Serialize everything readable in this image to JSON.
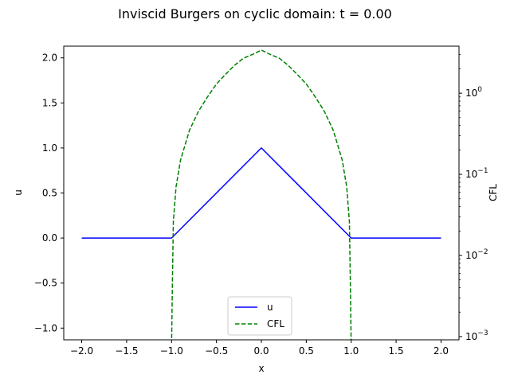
{
  "chart_data": {
    "type": "line",
    "title": "Inviscid Burgers on cyclic domain: t = 0.00",
    "xlabel": "x",
    "ylabel": "u",
    "y2label": "CFL",
    "xlim": [
      -2.2,
      2.2
    ],
    "ylim": [
      -1.13,
      2.13
    ],
    "y2lim_log10": [
      -3.04,
      0.58
    ],
    "y2scale": "log",
    "xticks": [
      -2.0,
      -1.5,
      -1.0,
      -0.5,
      0.0,
      0.5,
      1.0,
      1.5,
      2.0
    ],
    "xtick_labels": [
      "−2.0",
      "−1.5",
      "−1.0",
      "−0.5",
      "0.0",
      "0.5",
      "1.0",
      "1.5",
      "2.0"
    ],
    "yticks": [
      -1.0,
      -0.5,
      0.0,
      0.5,
      1.0,
      1.5,
      2.0
    ],
    "ytick_labels": [
      "−1.0",
      "−0.5",
      "0.0",
      "0.5",
      "1.0",
      "1.5",
      "2.0"
    ],
    "y2ticks_exp": [
      -3,
      -2,
      -1,
      0
    ],
    "y2tick_bases": [
      "10",
      "10",
      "10",
      "10"
    ],
    "y2tick_exps": [
      "−3",
      "−2",
      "−1",
      "0"
    ],
    "legend": {
      "placement": "lower center",
      "entries": [
        "u",
        "CFL"
      ]
    },
    "series": [
      {
        "name": "u",
        "axis": "left",
        "color": "#0000ff",
        "dash": "solid",
        "x": [
          -2.0,
          -1.0,
          0.0,
          1.0,
          2.0
        ],
        "y": [
          0.0,
          0.0,
          1.0,
          0.0,
          0.0
        ]
      },
      {
        "name": "CFL",
        "axis": "right",
        "color": "#008000",
        "dash": "dashed",
        "x": [
          -0.9995,
          -0.99,
          -0.98,
          -0.95,
          -0.9,
          -0.8,
          -0.7,
          -0.6,
          -0.5,
          -0.4,
          -0.3,
          -0.2,
          -0.1,
          0.0,
          0.1,
          0.2,
          0.3,
          0.4,
          0.5,
          0.6,
          0.7,
          0.8,
          0.9,
          0.95,
          0.98,
          0.99,
          0.9995
        ],
        "y": [
          0.0008,
          0.005,
          0.026,
          0.07,
          0.15,
          0.35,
          0.6,
          0.9,
          1.3,
          1.7,
          2.2,
          2.7,
          3.0,
          3.4,
          3.0,
          2.7,
          2.2,
          1.7,
          1.3,
          0.9,
          0.6,
          0.35,
          0.15,
          0.07,
          0.026,
          0.005,
          0.0008
        ]
      }
    ]
  }
}
